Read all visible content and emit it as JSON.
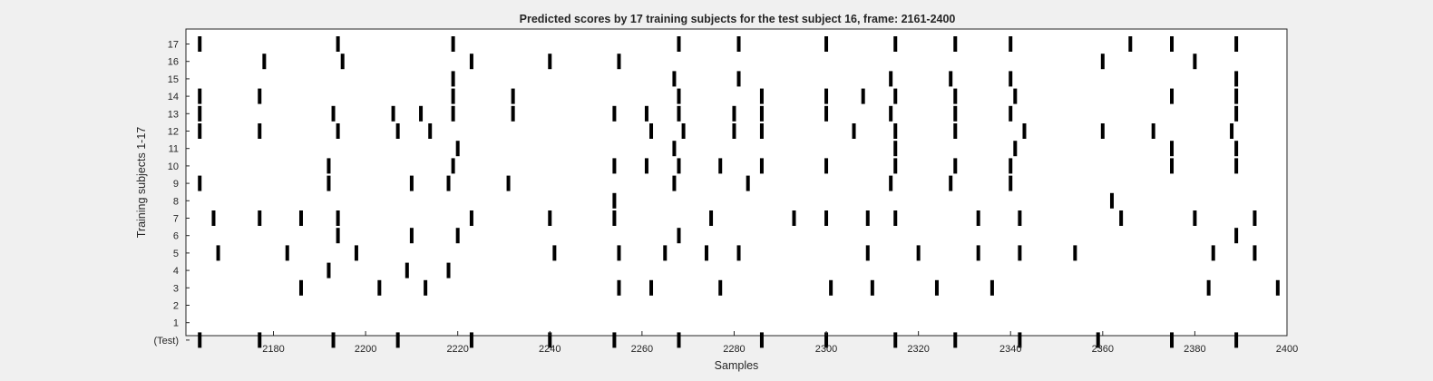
{
  "chart_data": {
    "type": "raster",
    "title": "Predicted scores by 17 training subjects for the test subject 16, frame: 2161-2400",
    "xlabel": "Samples",
    "ylabel": "Training subjects 1-17",
    "xlim": [
      2161,
      2400
    ],
    "xticks": [
      2180,
      2200,
      2220,
      2240,
      2260,
      2280,
      2300,
      2320,
      2340,
      2360,
      2380,
      2400
    ],
    "rows": [
      "(Test)",
      "1",
      "2",
      "3",
      "4",
      "5",
      "6",
      "7",
      "8",
      "9",
      "10",
      "11",
      "12",
      "13",
      "14",
      "15",
      "16",
      "17"
    ],
    "grid": false,
    "colors": {
      "mark": "#000000",
      "plot_background": "#ffffff",
      "figure_background": "#f0f0f0"
    },
    "series": [
      {
        "row": "(Test)",
        "x": [
          2164,
          2177,
          2193,
          2207,
          2223,
          2240,
          2254,
          2268,
          2286,
          2300,
          2315,
          2328,
          2342,
          2359,
          2375,
          2389
        ]
      },
      {
        "row": "1",
        "x": []
      },
      {
        "row": "2",
        "x": []
      },
      {
        "row": "3",
        "x": [
          2186,
          2203,
          2213,
          2255,
          2262,
          2277,
          2301,
          2310,
          2324,
          2336,
          2383,
          2398
        ]
      },
      {
        "row": "4",
        "x": [
          2192,
          2209,
          2218
        ]
      },
      {
        "row": "5",
        "x": [
          2168,
          2183,
          2198,
          2241,
          2255,
          2265,
          2274,
          2281,
          2309,
          2320,
          2333,
          2342,
          2354,
          2384,
          2393
        ]
      },
      {
        "row": "6",
        "x": [
          2194,
          2210,
          2220,
          2268,
          2389
        ]
      },
      {
        "row": "7",
        "x": [
          2167,
          2177,
          2186,
          2194,
          2223,
          2240,
          2254,
          2275,
          2293,
          2300,
          2309,
          2315,
          2333,
          2342,
          2364,
          2380,
          2393
        ]
      },
      {
        "row": "8",
        "x": [
          2254,
          2362
        ]
      },
      {
        "row": "9",
        "x": [
          2164,
          2192,
          2210,
          2218,
          2231,
          2267,
          2283,
          2314,
          2327,
          2340
        ]
      },
      {
        "row": "10",
        "x": [
          2192,
          2219,
          2254,
          2261,
          2268,
          2277,
          2286,
          2300,
          2315,
          2328,
          2340,
          2375,
          2389
        ]
      },
      {
        "row": "11",
        "x": [
          2220,
          2267,
          2315,
          2341,
          2375,
          2389
        ]
      },
      {
        "row": "12",
        "x": [
          2164,
          2177,
          2194,
          2207,
          2214,
          2262,
          2269,
          2280,
          2286,
          2306,
          2315,
          2328,
          2343,
          2360,
          2371,
          2388
        ]
      },
      {
        "row": "13",
        "x": [
          2164,
          2193,
          2206,
          2212,
          2219,
          2232,
          2254,
          2261,
          2268,
          2280,
          2286,
          2300,
          2314,
          2328,
          2340,
          2389
        ]
      },
      {
        "row": "14",
        "x": [
          2164,
          2177,
          2219,
          2232,
          2268,
          2286,
          2300,
          2308,
          2315,
          2328,
          2341,
          2375,
          2389
        ]
      },
      {
        "row": "15",
        "x": [
          2219,
          2267,
          2281,
          2314,
          2327,
          2340,
          2389
        ]
      },
      {
        "row": "16",
        "x": [
          2178,
          2195,
          2223,
          2240,
          2255,
          2360,
          2380
        ]
      },
      {
        "row": "17",
        "x": [
          2164,
          2194,
          2219,
          2268,
          2281,
          2300,
          2315,
          2328,
          2340,
          2366,
          2375,
          2389
        ]
      }
    ]
  }
}
